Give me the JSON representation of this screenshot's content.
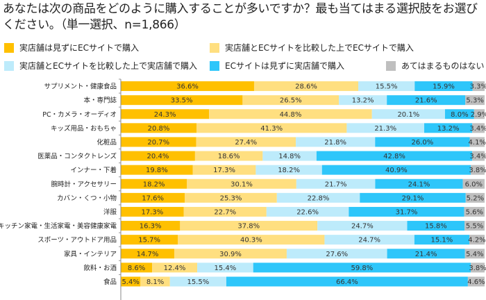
{
  "chart_data": {
    "type": "bar",
    "orientation": "horizontal",
    "stacked": true,
    "title": "あなたは次の商品をどのように購入することが多いですか？最も当てはまる選択肢をお選びください。（単一選択、n=1,866）",
    "legend_position": "top",
    "categories": [
      "サプリメント・健康食品",
      "本・専門誌",
      "PC・カメラ・オーディオ",
      "キッズ用品・おもちゃ",
      "化粧品",
      "医薬品・コンタクトレンズ",
      "インナー・下着",
      "腕時計・アクセサリー",
      "カバン・くつ・小物",
      "洋服",
      "キッチン家電・生活家電・美容健康家電",
      "スポーツ・アウトドア用品",
      "家具・インテリア",
      "飲料・お酒",
      "食品"
    ],
    "series": [
      {
        "name": "実店舗は見ずにECサイトで購入",
        "color": "#FFC000",
        "values": [
          36.6,
          33.5,
          24.3,
          20.8,
          20.7,
          20.4,
          19.8,
          18.2,
          17.6,
          17.3,
          16.3,
          15.7,
          14.7,
          8.6,
          5.4
        ]
      },
      {
        "name": "実店舗とECサイトを比較した上でECサイトで購入",
        "color": "#FFDF80",
        "values": [
          28.6,
          26.5,
          44.8,
          41.3,
          27.4,
          18.6,
          17.3,
          30.1,
          25.3,
          22.7,
          37.8,
          40.3,
          30.9,
          12.4,
          8.1
        ]
      },
      {
        "name": "実店舗とECサイトを比較した上で実店舗で購入",
        "color": "#BDEBFB",
        "values": [
          15.5,
          13.2,
          20.1,
          21.3,
          21.8,
          14.8,
          18.2,
          21.7,
          22.8,
          22.6,
          24.7,
          24.7,
          27.6,
          15.4,
          15.5
        ]
      },
      {
        "name": "ECサイトは見ずに実店舗で購入",
        "color": "#2EC6FA",
        "values": [
          15.9,
          21.6,
          8.0,
          13.2,
          26.0,
          42.8,
          40.9,
          24.1,
          29.1,
          31.7,
          15.8,
          15.1,
          21.4,
          59.8,
          66.4
        ]
      },
      {
        "name": "あてはまるものはない",
        "color": "#BFBFBF",
        "values": [
          3.3,
          5.3,
          2.9,
          3.4,
          4.1,
          3.4,
          3.8,
          6.0,
          5.2,
          5.6,
          5.5,
          4.2,
          5.4,
          3.8,
          4.6
        ]
      }
    ],
    "unit": "%",
    "xlim": [
      0,
      100
    ]
  }
}
